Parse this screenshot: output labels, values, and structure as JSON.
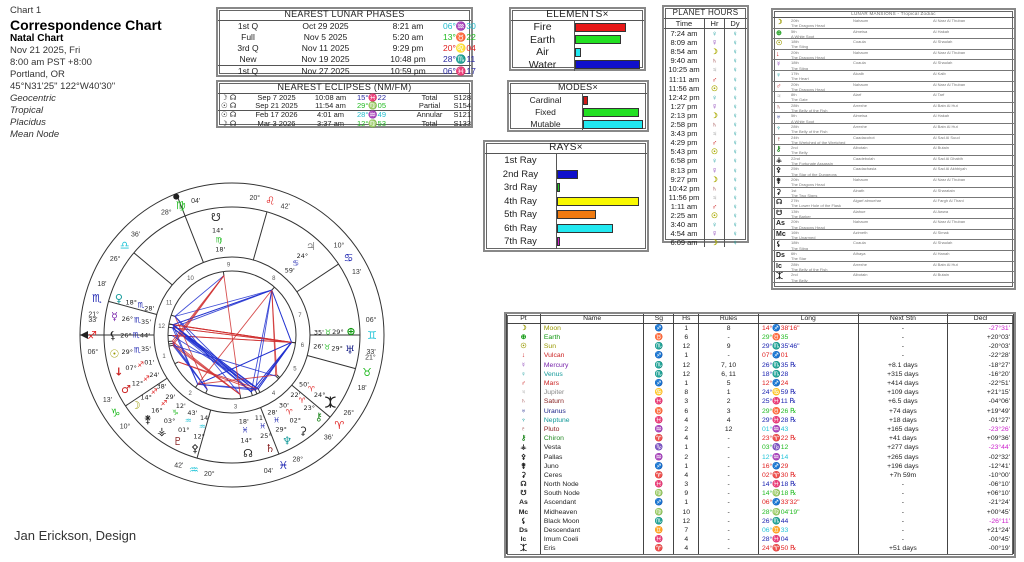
{
  "header": {
    "chart_no": "Chart 1",
    "title": "Correspondence Chart",
    "subtitle": "Natal Chart",
    "date": "Nov 21 2025, Fri",
    "time": "8:00 am  PST +8:00",
    "place": "Portland, OR",
    "coords": "45°N31'25\"  122°W40'30\"",
    "options": [
      "Geocentric",
      "Tropical",
      "Placidus",
      "Mean Node"
    ]
  },
  "footer": "Jan Erickson, Design",
  "colors": {
    "fire": "#e02020",
    "earth": "#22cc22",
    "air": "#22c4d8",
    "water": "#1a22b0",
    "oob": "#cc22cc"
  },
  "lunar_phases": {
    "title": "NEAREST LUNAR PHASES",
    "rows": [
      {
        "phase": "1st Q",
        "date": "Oct 29 2025",
        "time": "8:21 am",
        "pos": "06°♒30",
        "color": "#22bbcc"
      },
      {
        "phase": "Full",
        "date": "Nov 5 2025",
        "time": "5:20 am",
        "pos": "13°♉22",
        "color": "#22bb22"
      },
      {
        "phase": "3rd Q",
        "date": "Nov 11 2025",
        "time": "9:29 pm",
        "pos": "20°♌04",
        "color": "#e02020"
      },
      {
        "phase": "New",
        "date": "Nov 19 2025",
        "time": "10:48 pm",
        "pos": "28°♏11",
        "color": "#2a2aa0"
      },
      {
        "phase": "1st Q",
        "date": "Nov 27 2025",
        "time": "10:59 pm",
        "pos": "06°♓17",
        "color": "#2a2aa0"
      }
    ]
  },
  "eclipses": {
    "title": "NEAREST ECLIPSES (NM/FM)",
    "rows": [
      {
        "icon": "☽ ☊",
        "date": "Sep 7 2025",
        "time": "10:08 am",
        "pos": "15°♓22",
        "color": "#2a2aa0",
        "type": "Total",
        "saros": "S128"
      },
      {
        "icon": "☉ ☊",
        "date": "Sep 21 2025",
        "time": "11:54 am",
        "pos": "29°♍05",
        "color": "#22bb22",
        "type": "Partial",
        "saros": "S154"
      },
      {
        "icon": "☉ ☊",
        "date": "Feb 17 2026",
        "time": "4:01 am",
        "pos": "28°♒49",
        "color": "#22bbcc",
        "type": "Annular",
        "saros": "S121"
      },
      {
        "icon": "☽ ☊",
        "date": "Mar 3 2026",
        "time": "3:37 am",
        "pos": "12°♍53",
        "color": "#22bb22",
        "type": "Total",
        "saros": "S133"
      }
    ]
  },
  "elements": {
    "title": "ELEMENTS×",
    "rows": [
      {
        "label": "Fire",
        "value": 0.79,
        "color": "#e81818"
      },
      {
        "label": "Earth",
        "value": 0.7,
        "color": "#22e022"
      },
      {
        "label": "Air",
        "value": 0.09,
        "color": "#22e8f0"
      },
      {
        "label": "Water",
        "value": 1.0,
        "color": "#1010cc"
      }
    ]
  },
  "modes": {
    "title": "MODES×",
    "rows": [
      {
        "label": "Cardinal",
        "value": 0.08,
        "color": "#d01818"
      },
      {
        "label": "Fixed",
        "value": 0.93,
        "color": "#22e022"
      },
      {
        "label": "Mutable",
        "value": 1.0,
        "color": "#22e8f0"
      }
    ]
  },
  "rays": {
    "title": "RAYS×",
    "rows": [
      {
        "label": "1st Ray",
        "value": 0,
        "color": "#cc0000"
      },
      {
        "label": "2nd Ray",
        "value": 0.25,
        "color": "#1010cc"
      },
      {
        "label": "3rd Ray",
        "value": 0.04,
        "color": "#22cc22"
      },
      {
        "label": "4th Ray",
        "value": 1.0,
        "color": "#f8f800"
      },
      {
        "label": "5th Ray",
        "value": 0.47,
        "color": "#f07a10"
      },
      {
        "label": "6th Ray",
        "value": 0.68,
        "color": "#22e8f0"
      },
      {
        "label": "7th Ray",
        "value": 0.04,
        "color": "#cc22cc"
      }
    ]
  },
  "planet_hours": {
    "title": "PLANET HOURS",
    "cols": [
      "Time",
      "Hr",
      "Dy"
    ],
    "rows": [
      [
        "7:24 am",
        "♀",
        "♀"
      ],
      [
        "8:09 am",
        "☿",
        "♀"
      ],
      [
        "8:54 am",
        "☽",
        "♀"
      ],
      [
        "9:40 am",
        "♄",
        "♀"
      ],
      [
        "10:25 am",
        "♃",
        "♀"
      ],
      [
        "11:11 am",
        "♂",
        "♀"
      ],
      [
        "11:56 am",
        "☉",
        "♀"
      ],
      [
        "12:42 pm",
        "♀",
        "♀"
      ],
      [
        "1:27 pm",
        "☿",
        "♀"
      ],
      [
        "2:13 pm",
        "☽",
        "♀"
      ],
      [
        "2:58 pm",
        "♄",
        "♀"
      ],
      [
        "3:43 pm",
        "♃",
        "♀"
      ],
      [
        "4:29 pm",
        "♂",
        "♀"
      ],
      [
        "5:43 pm",
        "☉",
        "♀"
      ],
      [
        "6:58 pm",
        "♀",
        "♀"
      ],
      [
        "8:13 pm",
        "☿",
        "♀"
      ],
      [
        "9:27 pm",
        "☽",
        "♀"
      ],
      [
        "10:42 pm",
        "♄",
        "♀"
      ],
      [
        "11:56 pm",
        "♃",
        "♀"
      ],
      [
        "1:11 am",
        "♂",
        "♀"
      ],
      [
        "2:25 am",
        "☉",
        "♀"
      ],
      [
        "3:40 am",
        "♀",
        "♀"
      ],
      [
        "4:54 am",
        "☿",
        "♀"
      ],
      [
        "6:09 am",
        "☽",
        "♀"
      ]
    ]
  },
  "hour_colors": {
    "♀": "#119999",
    "☿": "#7722aa",
    "☽": "#aaaa00",
    "♄": "#882222",
    "♃": "#888888",
    "♂": "#cc2222",
    "☉": "#aaaa00"
  },
  "lunar_mansions": {
    "title": "LUNAR MANSIONS - Tropical Zodiac",
    "rows": [
      [
        "20th",
        "The Dragons Head",
        "Nahaum",
        "Al Nasr Al Thuban"
      ],
      [
        "5th",
        "A White Spot",
        "Almeisa",
        "Al Hakah"
      ],
      [
        "18th",
        "The Sting",
        "Coaula",
        "Al Shaulah"
      ],
      [
        "20th",
        "The Dragons Head",
        "Nahaum",
        "Al Nasr Al Thuban"
      ],
      [
        "18th",
        "The Sting",
        "Coaula",
        "Al Shaulah"
      ],
      [
        "17th",
        "The Heart",
        "Alcalb",
        "Al Kalb"
      ],
      [
        "20th",
        "The Dragons Head",
        "Nahaum",
        "Al Nasr Al Thuban"
      ],
      [
        "8th",
        "The Gate",
        "Alarf",
        "Al Tarf"
      ],
      [
        "28th",
        "The Belly of the Fish",
        "Arrexhe",
        "Al Batn Al Hut"
      ],
      [
        "5th",
        "A White Spot",
        "Almeisa",
        "Al Hakah"
      ],
      [
        "28th",
        "The Belly of the Fish",
        "Arrexhe",
        "Al Batn Al Hut"
      ],
      [
        "24th",
        "The Wretched of the Wretched",
        "Caadacohot",
        "Al Sad Al Suud"
      ],
      [
        "2nd",
        "The Belly",
        "Albotain",
        "Al Butain"
      ],
      [
        "22nd",
        "The Fortunate Assassin",
        "Caadebolah",
        "Al Sad Al Dhabih"
      ],
      [
        "25th",
        "The Star of the Dungeons",
        "Caadachasia",
        "Al Sad Al Akhbiyah"
      ],
      [
        "20th",
        "The Dragons Head",
        "Nahaum",
        "Al Nasr Al Thuban"
      ],
      [
        "1st",
        "The Two Signs",
        "Alnath",
        "Al Sharatain"
      ],
      [
        "27th",
        "The Lower Hole of the Flask",
        "Algarf almuehar",
        "Al Fargh Al Thani"
      ],
      [
        "13th",
        "The Barker",
        "Alahue",
        "Al Awwa"
      ],
      [
        "20th",
        "The Dragons Head",
        "Nahaum",
        "Al Nasr Al Thuban"
      ],
      [
        "16th",
        "The Unarmed",
        "Azimeth",
        "Al Simak"
      ],
      [
        "18th",
        "The Sting",
        "Coaula",
        "Al Shaulah"
      ],
      [
        "6th",
        "The Star",
        "Athaya",
        "Al Hanah"
      ],
      [
        "28th",
        "The Belly of the Fish",
        "Arrexhe",
        "Al Batn Al Hut"
      ],
      [
        "2nd",
        "The Belly",
        "Albotain",
        "Al Butain"
      ]
    ]
  },
  "planets": {
    "cols": [
      "Pt",
      "Name",
      "Sg",
      "Hs",
      "Rules",
      "Long",
      "Next Stn",
      "Decl"
    ],
    "rows": [
      {
        "g": "☽",
        "name": "Moon",
        "color": "#999900",
        "sg": "♐",
        "hs": "1",
        "rules": "8",
        "long": "14°♐38'16\"",
        "stn": "-",
        "decl": "-27°31'",
        "oob": true
      },
      {
        "g": "⊕",
        "name": "Earth",
        "color": "#119911",
        "sg": "♉",
        "hs": "6",
        "rules": "-",
        "long": "29°♉35",
        "stn": "-",
        "decl": "+20°03'"
      },
      {
        "g": "☉",
        "name": "Sun",
        "color": "#999900",
        "sg": "♏",
        "hs": "12",
        "rules": "9",
        "long": "29°♏35'46\"",
        "stn": "-",
        "decl": "-20°03'"
      },
      {
        "g": "↓",
        "name": "Vulcan",
        "color": "#cc2222",
        "sg": "♐",
        "hs": "1",
        "rules": "-",
        "long": "07°♐01",
        "stn": "-",
        "decl": "-22°28'"
      },
      {
        "g": "☿",
        "name": "Mercury",
        "color": "#7722aa",
        "sg": "♏",
        "hs": "12",
        "rules": "7, 10",
        "long": "26°♏35 ℞",
        "stn": "+8.1 days",
        "decl": "-18°27'"
      },
      {
        "g": "♀",
        "name": "Venus",
        "color": "#119999",
        "sg": "♏",
        "hs": "12",
        "rules": "6, 11",
        "long": "18°♏28",
        "stn": "+315 days",
        "decl": "-16°20'"
      },
      {
        "g": "♂",
        "name": "Mars",
        "color": "#cc2222",
        "sg": "♐",
        "hs": "1",
        "rules": "5",
        "long": "12°♐24",
        "stn": "+414 days",
        "decl": "-22°51'"
      },
      {
        "g": "♃",
        "name": "Jupiter",
        "color": "#888888",
        "sg": "♋",
        "hs": "8",
        "rules": "1",
        "long": "24°♋59 ℞",
        "stn": "+109 days",
        "decl": "+21°15'"
      },
      {
        "g": "♄",
        "name": "Saturn",
        "color": "#882222",
        "sg": "♓",
        "hs": "3",
        "rules": "2",
        "long": "25°♓11 ℞",
        "stn": "+6.5 days",
        "decl": "-04°06'"
      },
      {
        "g": "♅",
        "name": "Uranus",
        "color": "#1a2288",
        "sg": "♉",
        "hs": "6",
        "rules": "3",
        "long": "29°♉26 ℞",
        "stn": "+74 days",
        "decl": "+19°49'"
      },
      {
        "g": "♆",
        "name": "Neptune",
        "color": "#119999",
        "sg": "♓",
        "hs": "4",
        "rules": "4",
        "long": "29°♓28 ℞",
        "stn": "+18 days",
        "decl": "-01°27'"
      },
      {
        "g": "♇",
        "name": "Pluto",
        "color": "#882222",
        "sg": "♒",
        "hs": "2",
        "rules": "12",
        "long": "01°♒43",
        "stn": "+165 days",
        "decl": "-23°26'",
        "oob": true
      },
      {
        "g": "⚷",
        "name": "Chiron",
        "color": "#228822",
        "sg": "♈",
        "hs": "4",
        "rules": "-",
        "long": "23°♈22 ℞",
        "stn": "+41 days",
        "decl": "+09°36'"
      },
      {
        "g": "⚶",
        "name": "Vesta",
        "color": "#222",
        "sg": "♑",
        "hs": "1",
        "rules": "-",
        "long": "03°♑12",
        "stn": "+277 days",
        "decl": "-23°44'",
        "oob": true
      },
      {
        "g": "⚴",
        "name": "Pallas",
        "color": "#222",
        "sg": "♒",
        "hs": "2",
        "rules": "-",
        "long": "12°♒14",
        "stn": "+265 days",
        "decl": "-02°32'"
      },
      {
        "g": "⚵",
        "name": "Juno",
        "color": "#222",
        "sg": "♐",
        "hs": "1",
        "rules": "-",
        "long": "16°♐29",
        "stn": "+196 days",
        "decl": "-12°41'"
      },
      {
        "g": "⚳",
        "name": "Ceres",
        "color": "#222",
        "sg": "♈",
        "hs": "4",
        "rules": "-",
        "long": "02°♈30 ℞",
        "stn": "+7h 59m",
        "decl": "-10°00'"
      },
      {
        "g": "☊",
        "name": "North Node",
        "color": "#222",
        "sg": "♓",
        "hs": "3",
        "rules": "-",
        "long": "14°♓18 ℞",
        "stn": "-",
        "decl": "-06°10'"
      },
      {
        "g": "☋",
        "name": "South Node",
        "color": "#222",
        "sg": "♍",
        "hs": "9",
        "rules": "-",
        "long": "14°♍18 ℞",
        "stn": "-",
        "decl": "+06°10'"
      },
      {
        "g": "As",
        "name": "Ascendant",
        "color": "#222",
        "sg": "♐",
        "hs": "1",
        "rules": "-",
        "long": "06°♐33'32\"",
        "stn": "-",
        "decl": "-21°24'",
        "angle": true
      },
      {
        "g": "Mc",
        "name": "Midheaven",
        "color": "#222",
        "sg": "♍",
        "hs": "10",
        "rules": "-",
        "long": "28°♍04'19\"",
        "stn": "-",
        "decl": "+00°45'",
        "angle": true
      },
      {
        "g": "⚸",
        "name": "Black Moon",
        "color": "#222",
        "sg": "♏",
        "hs": "12",
        "rules": "-",
        "long": "26°♏44",
        "stn": "-",
        "decl": "-26°11'",
        "oob": true
      },
      {
        "g": "Ds",
        "name": "Descendant",
        "color": "#222",
        "sg": "♊",
        "hs": "7",
        "rules": "-",
        "long": "06°♊33",
        "stn": "-",
        "decl": "+21°24'",
        "angle": true
      },
      {
        "g": "Ic",
        "name": "Imum Coeli",
        "color": "#222",
        "sg": "♓",
        "hs": "4",
        "rules": "-",
        "long": "28°♓04",
        "stn": "-",
        "decl": "-00°45'",
        "angle": true
      },
      {
        "g": "⯰",
        "name": "Eris",
        "color": "#222",
        "sg": "♈",
        "hs": "4",
        "rules": "-",
        "long": "24°♈50 ℞",
        "stn": "+51 days",
        "decl": "-00°19'"
      }
    ]
  },
  "wheel": {
    "cusps": [
      {
        "house": "1",
        "deg": "06°",
        "sign": "♐",
        "min": "33'"
      },
      {
        "house": "2",
        "deg": "10°",
        "sign": "♑",
        "min": "13'"
      },
      {
        "house": "3",
        "deg": "20°",
        "sign": "♒",
        "min": "42'"
      },
      {
        "house": "4",
        "deg": "28°",
        "sign": "♓",
        "min": "04'"
      },
      {
        "house": "5",
        "deg": "26°",
        "sign": "♈",
        "min": "36'"
      },
      {
        "house": "6",
        "deg": "21°",
        "sign": "♉",
        "min": "18'"
      },
      {
        "house": "7",
        "deg": "06°",
        "sign": "♊",
        "min": "33'"
      },
      {
        "house": "8",
        "deg": "10°",
        "sign": "♋",
        "min": "13'"
      },
      {
        "house": "9",
        "deg": "20°",
        "sign": "♌",
        "min": "42'"
      },
      {
        "house": "10",
        "deg": "28°",
        "sign": "♍",
        "min": "04'"
      },
      {
        "house": "11",
        "deg": "26°",
        "sign": "♎",
        "min": "36'"
      },
      {
        "house": "12",
        "deg": "21°",
        "sign": "♏",
        "min": "18'"
      }
    ],
    "retro_symbol": "℞"
  }
}
